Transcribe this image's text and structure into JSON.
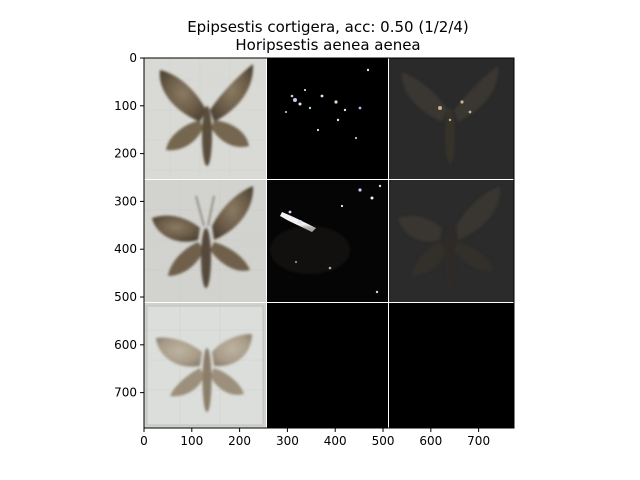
{
  "figure": {
    "title_line1": "Epipsestis cortigera, acc: 0.50 (1/2/4)",
    "title_line2": "Horipsestis aenea aenea",
    "background": "#ffffff",
    "grid_line_color": "#ffffff",
    "panel_dark": "#000000",
    "panel_gray": "#2a2a2a"
  },
  "axes": {
    "x_ticks": [
      "0",
      "100",
      "200",
      "300",
      "400",
      "500",
      "600",
      "700"
    ],
    "y_ticks": [
      "0",
      "100",
      "200",
      "300",
      "400",
      "500",
      "600",
      "700"
    ],
    "xlim": [
      0,
      774
    ],
    "ylim": [
      774,
      0
    ],
    "x_tick_values": [
      0,
      100,
      200,
      300,
      400,
      500,
      600,
      700
    ],
    "y_tick_values": [
      0,
      100,
      200,
      300,
      400,
      500,
      600,
      700
    ]
  },
  "grid": {
    "rows": 3,
    "cols": 3,
    "panels": [
      {
        "row": 0,
        "col": 0,
        "kind": "photo"
      },
      {
        "row": 0,
        "col": 1,
        "kind": "saliency-dark"
      },
      {
        "row": 0,
        "col": 2,
        "kind": "saliency-overlay"
      },
      {
        "row": 1,
        "col": 0,
        "kind": "photo"
      },
      {
        "row": 1,
        "col": 1,
        "kind": "saliency-dark"
      },
      {
        "row": 1,
        "col": 2,
        "kind": "saliency-overlay"
      },
      {
        "row": 2,
        "col": 0,
        "kind": "photo"
      },
      {
        "row": 2,
        "col": 1,
        "kind": "empty"
      },
      {
        "row": 2,
        "col": 2,
        "kind": "empty"
      }
    ]
  }
}
